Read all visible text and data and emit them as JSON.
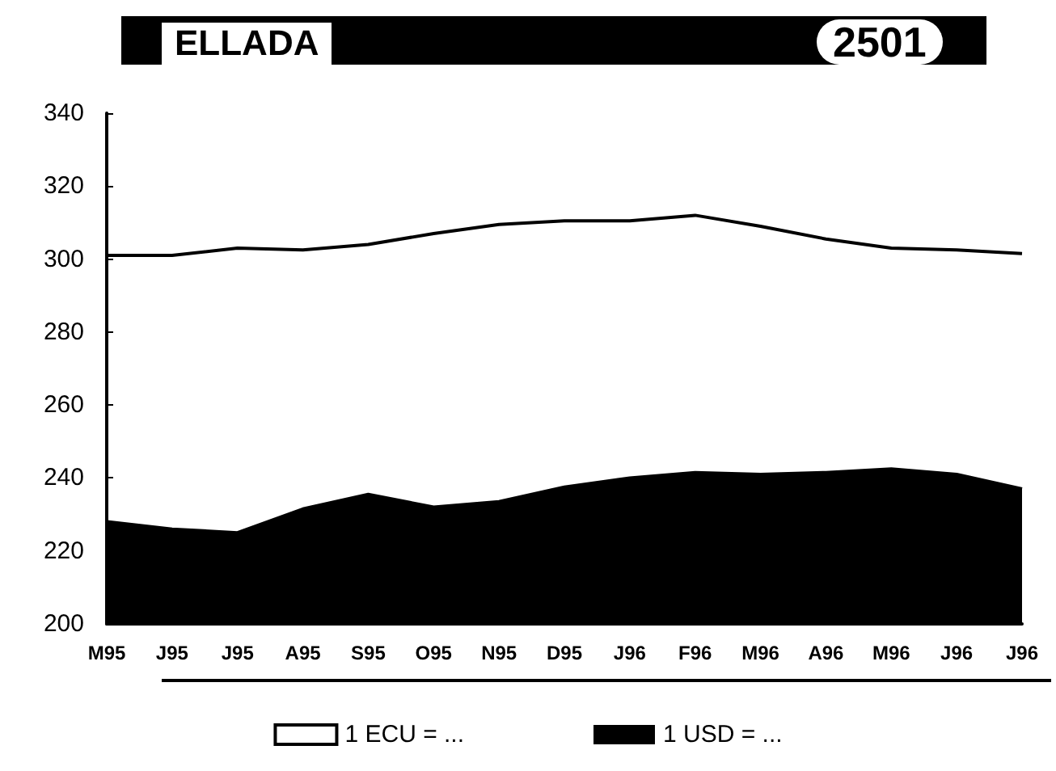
{
  "chart_data": {
    "type": "line",
    "title": "ELLADA",
    "annotations": [
      "2501"
    ],
    "categories": [
      "M95",
      "J95",
      "J95",
      "A95",
      "S95",
      "O95",
      "N95",
      "D95",
      "J96",
      "F96",
      "M96",
      "A96",
      "M96",
      "J96",
      "J96"
    ],
    "series": [
      {
        "name": "1 ECU = ...",
        "color": "#000000",
        "values": [
          301,
          301,
          303,
          302.5,
          304,
          307,
          309.5,
          310.5,
          310.5,
          312,
          309,
          305.5,
          303,
          302.5,
          301.5
        ]
      },
      {
        "name": "1 USD = ...",
        "type": "area",
        "color": "#000000",
        "values": [
          228,
          226,
          225,
          231.5,
          235.5,
          232,
          233.5,
          237.5,
          240,
          241.5,
          241,
          241.5,
          242.5,
          241,
          237
        ]
      }
    ],
    "ylim": [
      200,
      340
    ],
    "yticks": [
      200,
      220,
      240,
      260,
      280,
      300,
      320,
      340
    ],
    "grid": false,
    "legend": "bottom",
    "marker": "none",
    "line_style": "solid"
  }
}
